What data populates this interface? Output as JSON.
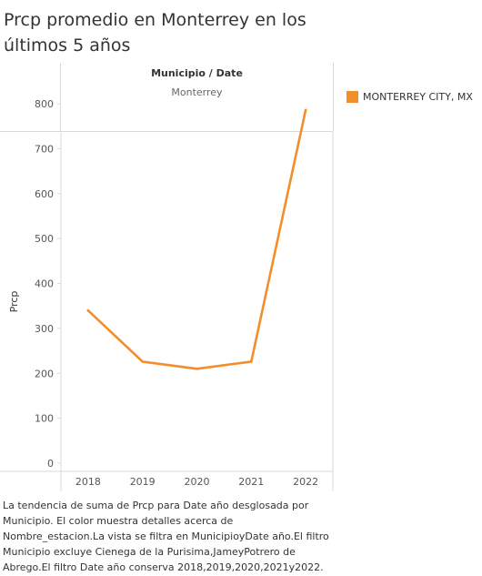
{
  "chart_data": {
    "type": "line",
    "title": "Prcp promedio en Monterrey en los últimos 5 años",
    "header": {
      "label": "Municipio / Date",
      "value": "Monterrey"
    },
    "ylabel": "Prcp",
    "xlabel": "",
    "categories": [
      "2018",
      "2019",
      "2020",
      "2021",
      "2022"
    ],
    "series": [
      {
        "name": "MONTERREY CITY, MX",
        "color": "#f28e2b",
        "values": [
          340,
          226,
          210,
          226,
          786
        ]
      }
    ],
    "ylim": [
      0,
      820
    ],
    "yticks": [
      0,
      100,
      200,
      300,
      400,
      500,
      600,
      700,
      800
    ],
    "grid": false,
    "legend_position": "right"
  },
  "caption": "La tendencia de suma de Prcp para Date año desglosada por Municipio. El color muestra detalles acerca de Nombre_estacion.La vista se filtra en MunicipioyDate año.El filtro Municipio excluye Cienega de la Purisima,JameyPotrero de Abrego.El filtro Date año conserva 2018,2019,2020,2021y2022."
}
